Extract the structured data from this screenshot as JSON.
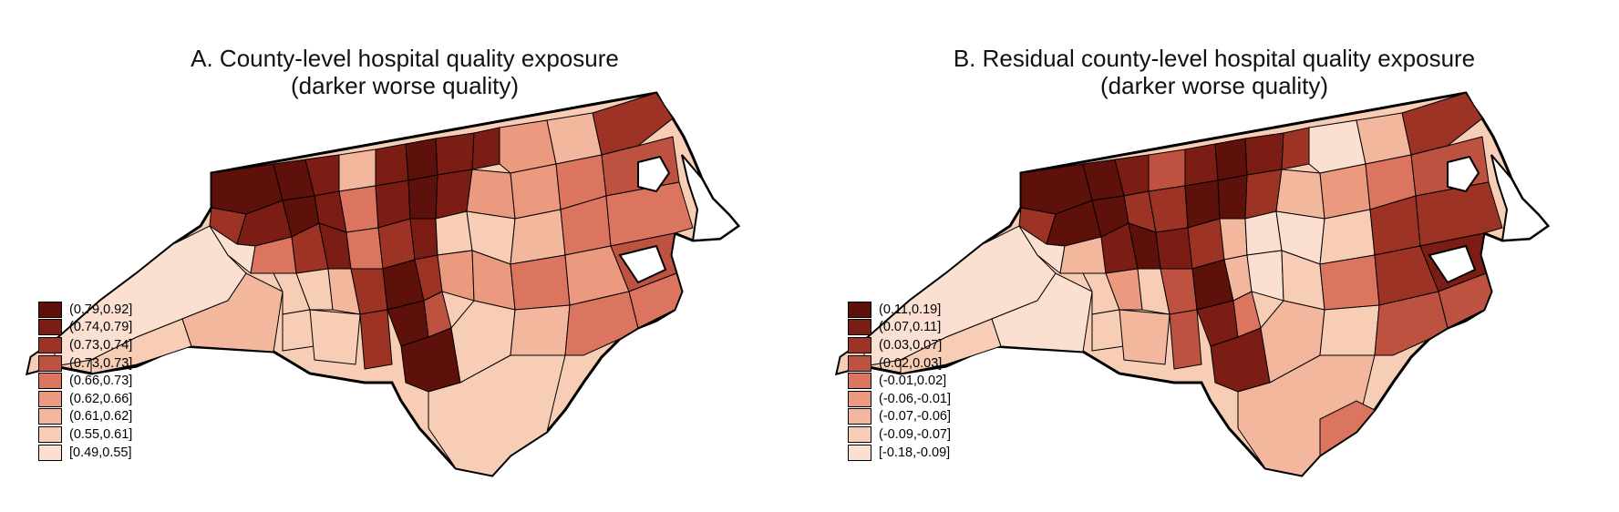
{
  "panels": [
    {
      "id": "A",
      "title_line1": "A. County-level hospital quality exposure",
      "title_line2": "(darker worse quality)",
      "legend": [
        {
          "label": "(0.79,0.92]",
          "color": "#5e100a"
        },
        {
          "label": "(0.74,0.79]",
          "color": "#7b1d14"
        },
        {
          "label": "(0.73,0.74]",
          "color": "#9c3325"
        },
        {
          "label": "(0.73,0.73]",
          "color": "#bd5240"
        },
        {
          "label": "(0.66,0.73]",
          "color": "#dc7560"
        },
        {
          "label": "(0.62,0.66]",
          "color": "#ec9a7f"
        },
        {
          "label": "(0.61,0.62]",
          "color": "#f3b79e"
        },
        {
          "label": "(0.55,0.61]",
          "color": "#f8cdb6"
        },
        {
          "label": "[0.49,0.55]",
          "color": "#fbe0d2"
        }
      ]
    },
    {
      "id": "B",
      "title_line1": "B. Residual county-level hospital quality exposure",
      "title_line2": "(darker worse quality)",
      "legend": [
        {
          "label": "(0.11,0.19]",
          "color": "#5e100a"
        },
        {
          "label": "(0.07,0.11]",
          "color": "#7b1d14"
        },
        {
          "label": "(0.03,0.07]",
          "color": "#9c3325"
        },
        {
          "label": "(0.02,0.03]",
          "color": "#bd5240"
        },
        {
          "label": "(-0.01,0.02]",
          "color": "#dc7560"
        },
        {
          "label": "(-0.06,-0.01]",
          "color": "#ec9a7f"
        },
        {
          "label": "(-0.07,-0.06]",
          "color": "#f3b79e"
        },
        {
          "label": "(-0.09,-0.07]",
          "color": "#f8cdb6"
        },
        {
          "label": "[-0.18,-0.09]",
          "color": "#fbe0d2"
        }
      ]
    }
  ]
}
